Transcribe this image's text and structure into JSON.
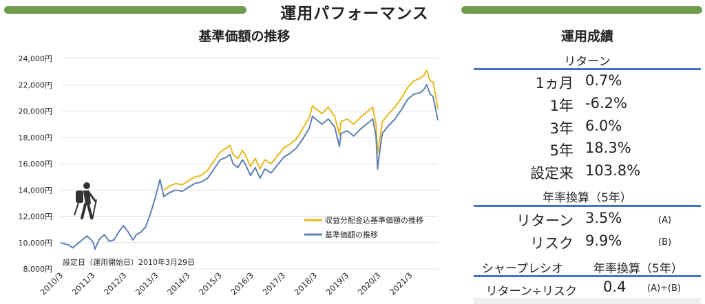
{
  "header": {
    "title": "運用パフォーマンス",
    "accent_color": "#6f9c4e"
  },
  "chart_data": {
    "type": "line",
    "title": "基準価額の推移",
    "xlabel": "",
    "ylabel": "",
    "ylim": [
      8000,
      24000
    ],
    "yticks": [
      "24,000円",
      "22,000円",
      "20,000円",
      "18,000円",
      "16,000円",
      "14,000円",
      "12,000円",
      "10,000円",
      "8,000円"
    ],
    "ytick_values": [
      24000,
      22000,
      20000,
      18000,
      16000,
      14000,
      12000,
      10000,
      8000
    ],
    "xticks": [
      "2010/3",
      "2011/3",
      "2012/3",
      "2013/3",
      "2014/3",
      "2015/3",
      "2016/3",
      "2017/3",
      "2018/3",
      "2019/3",
      "2020/3",
      "2021/3"
    ],
    "x_range": [
      2010.17,
      2022.05
    ],
    "grid": true,
    "legend_position": "bottom-right",
    "annotation": "設定日（運用開始日）2010年3月29日",
    "series": [
      {
        "name": "収益分配金込基準価額の推移",
        "color": "#e8b81b",
        "x": [
          2013.42,
          2013.6,
          2013.8,
          2014.0,
          2014.2,
          2014.4,
          2014.6,
          2014.8,
          2015.0,
          2015.2,
          2015.4,
          2015.5,
          2015.6,
          2015.75,
          2015.9,
          2016.0,
          2016.15,
          2016.3,
          2016.45,
          2016.6,
          2016.8,
          2017.0,
          2017.2,
          2017.4,
          2017.6,
          2017.8,
          2018.0,
          2018.1,
          2018.2,
          2018.4,
          2018.6,
          2018.8,
          2018.95,
          2019.0,
          2019.2,
          2019.4,
          2019.6,
          2019.8,
          2020.0,
          2020.1,
          2020.15,
          2020.2,
          2020.3,
          2020.5,
          2020.7,
          2020.9,
          2021.1,
          2021.3,
          2021.5,
          2021.6,
          2021.7,
          2021.8,
          2021.9,
          2022.0,
          2022.05
        ],
        "values": [
          14000,
          14300,
          14500,
          14400,
          14700,
          15000,
          15100,
          15500,
          16200,
          16900,
          17200,
          17400,
          16700,
          16400,
          17000,
          16600,
          15800,
          16400,
          15600,
          16300,
          16000,
          16600,
          17200,
          17500,
          17900,
          18700,
          19500,
          20400,
          20200,
          19800,
          20300,
          19600,
          18200,
          19200,
          19400,
          19000,
          19500,
          19900,
          20300,
          19000,
          16800,
          17500,
          19200,
          19800,
          20300,
          21000,
          21800,
          22300,
          22500,
          22700,
          23100,
          22300,
          22200,
          20900,
          20200
        ]
      },
      {
        "name": "基準価額の推移",
        "color": "#5b7fb5",
        "x": [
          2010.17,
          2010.3,
          2010.45,
          2010.55,
          2010.7,
          2010.85,
          2011.0,
          2011.1,
          2011.2,
          2011.25,
          2011.4,
          2011.55,
          2011.7,
          2011.85,
          2012.0,
          2012.15,
          2012.3,
          2012.45,
          2012.55,
          2012.7,
          2012.85,
          2013.0,
          2013.15,
          2013.3,
          2013.42,
          2013.6,
          2013.8,
          2014.0,
          2014.2,
          2014.4,
          2014.6,
          2014.8,
          2015.0,
          2015.2,
          2015.4,
          2015.5,
          2015.6,
          2015.75,
          2015.9,
          2016.0,
          2016.15,
          2016.3,
          2016.45,
          2016.6,
          2016.8,
          2017.0,
          2017.2,
          2017.4,
          2017.6,
          2017.8,
          2018.0,
          2018.1,
          2018.2,
          2018.4,
          2018.6,
          2018.8,
          2018.95,
          2019.0,
          2019.2,
          2019.4,
          2019.6,
          2019.8,
          2020.0,
          2020.1,
          2020.15,
          2020.2,
          2020.3,
          2020.5,
          2020.7,
          2020.9,
          2021.1,
          2021.3,
          2021.5,
          2021.6,
          2021.7,
          2021.8,
          2021.9,
          2022.0,
          2022.05
        ],
        "values": [
          10000,
          9900,
          9800,
          9600,
          9900,
          10200,
          10500,
          10300,
          10000,
          9500,
          10300,
          10600,
          10100,
          10200,
          10800,
          11300,
          10800,
          10200,
          10600,
          10800,
          11200,
          12200,
          13400,
          14800,
          13500,
          13800,
          14000,
          13900,
          14200,
          14500,
          14600,
          14900,
          15600,
          16300,
          16500,
          16700,
          16000,
          15700,
          16300,
          15900,
          15100,
          15700,
          14900,
          15600,
          15300,
          15900,
          16500,
          16800,
          17200,
          17900,
          18700,
          19600,
          19400,
          19000,
          19400,
          18800,
          17300,
          18300,
          18500,
          18100,
          18600,
          19000,
          19400,
          18100,
          15600,
          16600,
          18300,
          18900,
          19400,
          20100,
          20900,
          21300,
          21400,
          21600,
          22000,
          21300,
          21100,
          19900,
          19300
        ]
      }
    ]
  },
  "performance": {
    "title": "運用成績",
    "returns_header": "リターン",
    "returns": [
      {
        "label": "1ヵ月",
        "value": "0.7%"
      },
      {
        "label": "1年",
        "value": "-6.2%"
      },
      {
        "label": "3年",
        "value": "6.0%"
      },
      {
        "label": "5年",
        "value": "18.3%"
      },
      {
        "label": "設定来",
        "value": "103.8%"
      }
    ],
    "annualized_header": "年率換算（5年）",
    "annualized": [
      {
        "label": "リターン",
        "value": "3.5%",
        "note": "(A)"
      },
      {
        "label": "リスク",
        "value": "9.9%",
        "note": "(B)"
      }
    ],
    "sharpe_header": "シャープレシオ",
    "sharpe_sub_header": "年率換算（5年）",
    "sharpe": {
      "label": "リターン÷リスク",
      "value": "0.4",
      "note": "(A)÷(B)"
    },
    "rule_color": "#4472c4"
  },
  "hiker_icon": "hiker-with-backpack-icon"
}
